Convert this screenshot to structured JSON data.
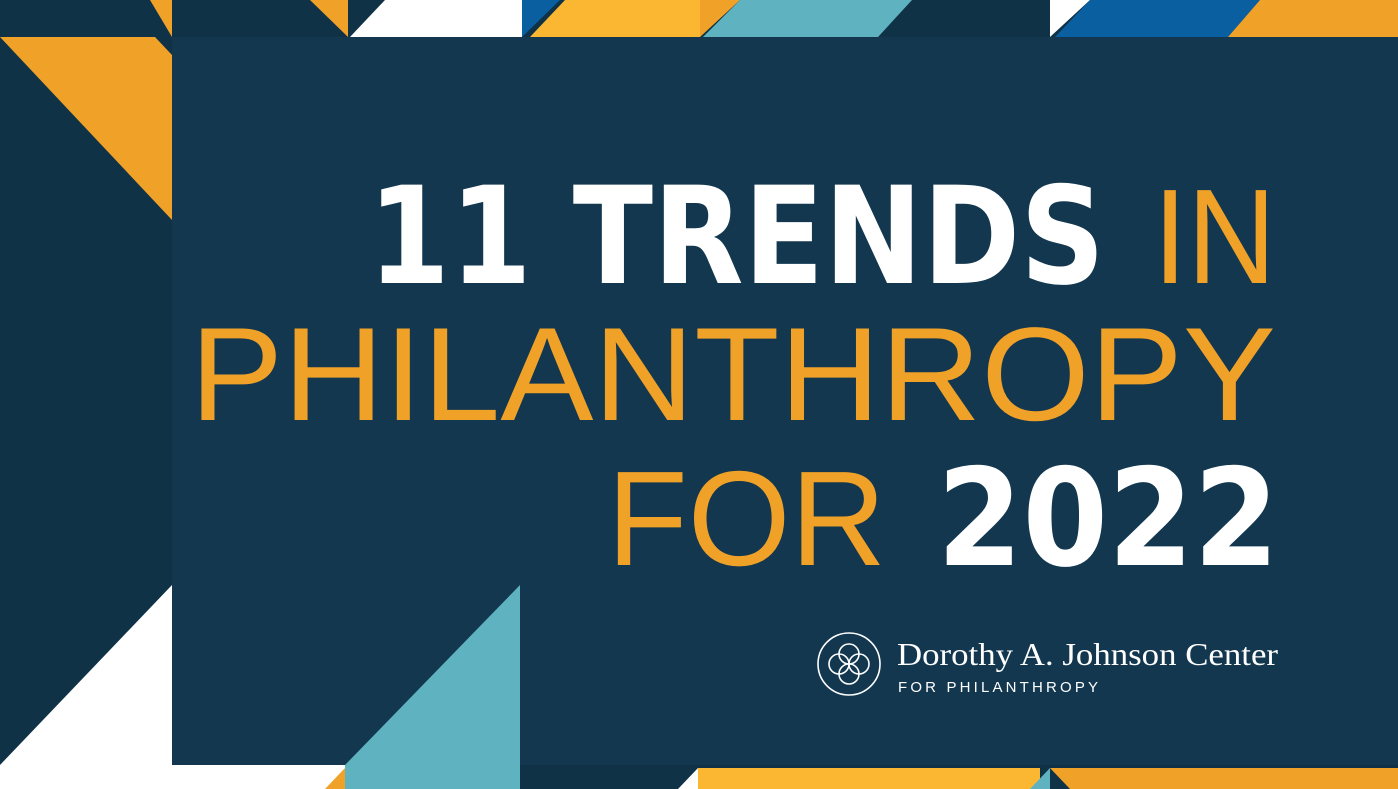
{
  "headline": {
    "bold_1": "11 TRENDS",
    "light_1": "IN",
    "light_2": "PHILANTHROPY",
    "light_3": "FOR",
    "bold_2": "2022"
  },
  "logo": {
    "name": "Dorothy A. Johnson Center",
    "tagline": "FOR PHILANTHROPY"
  }
}
